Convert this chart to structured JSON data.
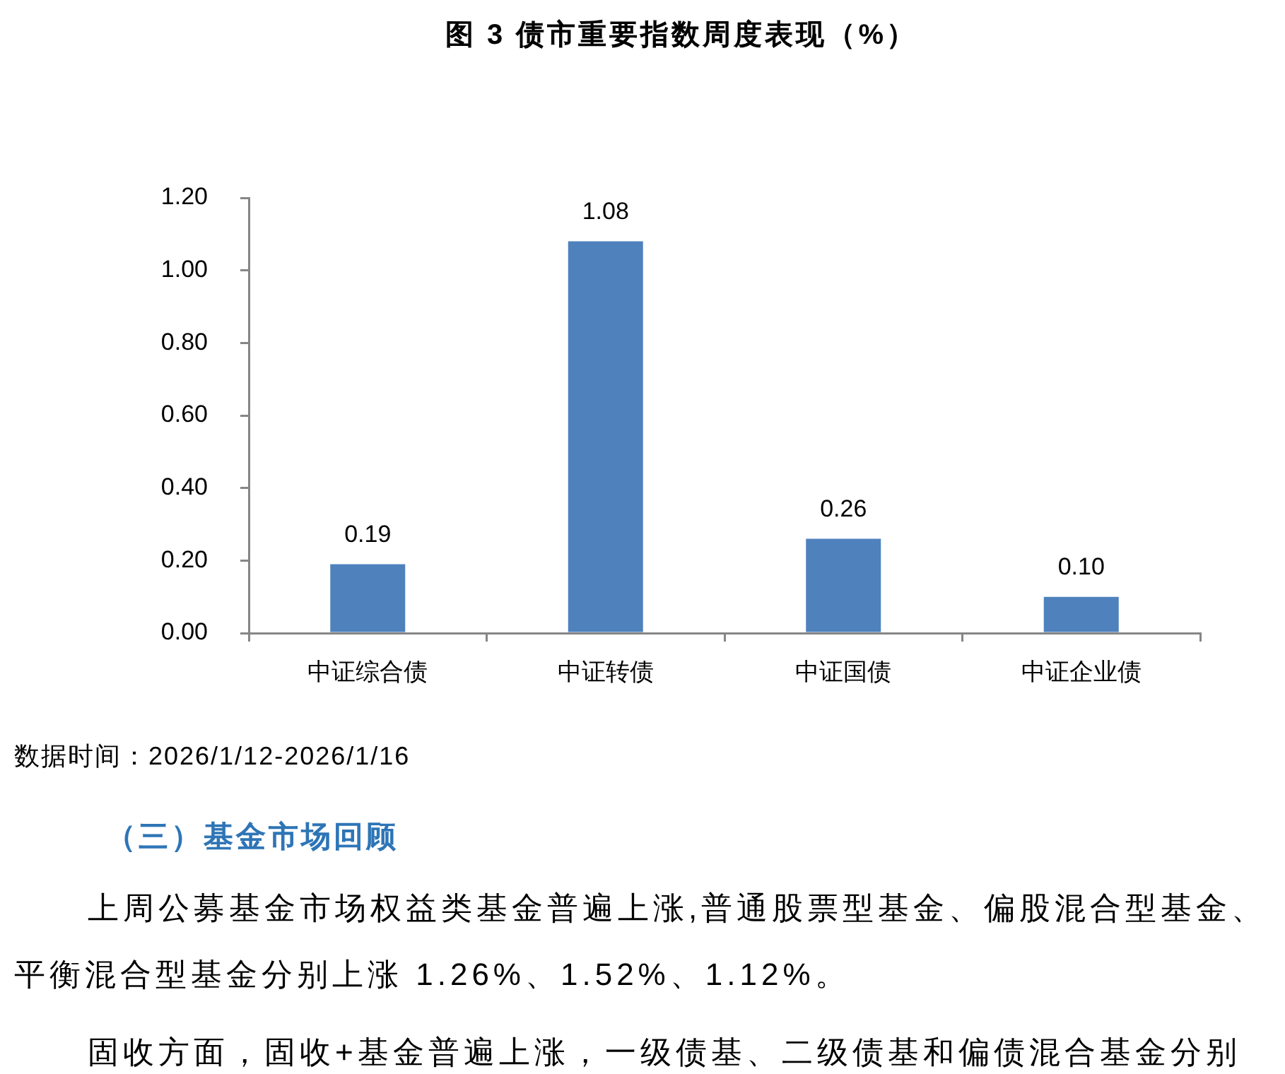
{
  "chart_data": {
    "type": "bar",
    "title": "图 3 债市重要指数周度表现（%）",
    "categories": [
      "中证综合债",
      "中证转债",
      "中证国债",
      "中证企业债"
    ],
    "values": [
      0.19,
      1.08,
      0.26,
      0.1
    ],
    "color": "#4f81bd",
    "value_labels": [
      "0.19",
      "1.08",
      "0.26",
      "0.10"
    ],
    "ylim": [
      0,
      1.2
    ],
    "yticks": [
      {
        "value": 0,
        "label": "0.00"
      },
      {
        "value": 0.2,
        "label": "0.20"
      },
      {
        "value": 0.4,
        "label": "0.40"
      },
      {
        "value": 0.6,
        "label": "0.60"
      },
      {
        "value": 0.8,
        "label": "0.80"
      },
      {
        "value": 1.0,
        "label": "1.00"
      },
      {
        "value": 1.2,
        "label": "1.20"
      }
    ],
    "annotations": [
      "数据时间：2026/1/12-2026/1/16",
      "（三）基金市场回顾",
      "上周公募基金市场权益类基金普遍上涨,普通股票型基金、偏股混合型基金、平衡混合型基金分别上涨 1.26%、1.52%、1.12%。",
      "固收方面，固收+基金普遍上涨，一级债基、二级债基和偏债混合基金分别"
    ]
  }
}
